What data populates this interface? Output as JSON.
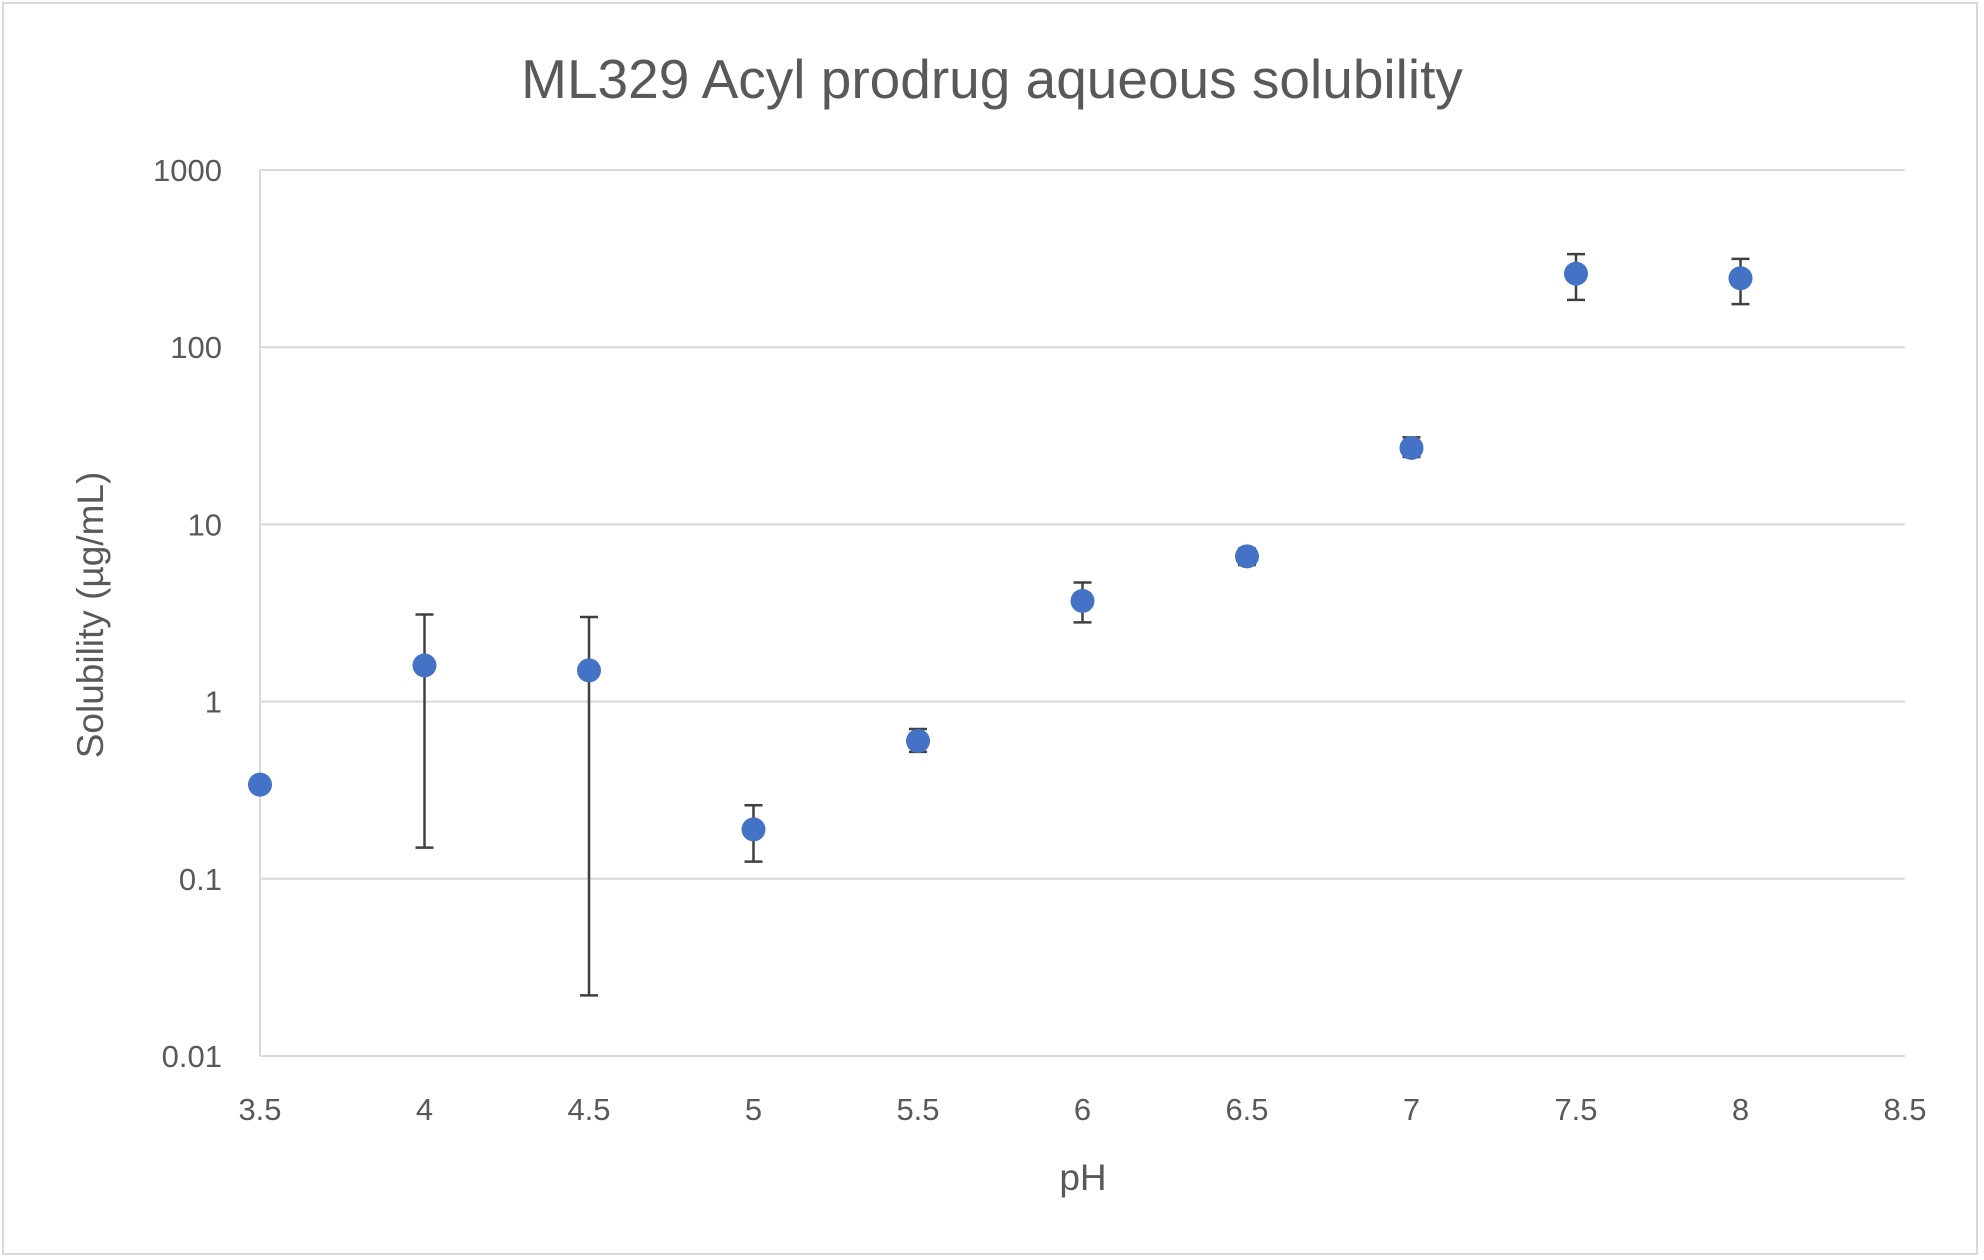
{
  "chart_data": {
    "type": "scatter",
    "title": "ML329 Acyl prodrug aqueous solubility",
    "xlabel": "pH",
    "ylabel": "Solubility (µg/mL)",
    "x_scale": "linear",
    "y_scale": "log",
    "xlim": [
      3.5,
      8.5
    ],
    "ylim": [
      0.01,
      1000
    ],
    "x_ticks": [
      3.5,
      4,
      4.5,
      5,
      5.5,
      6,
      6.5,
      7,
      7.5,
      8,
      8.5
    ],
    "x_tick_labels": [
      "3.5",
      "4",
      "4.5",
      "5",
      "5.5",
      "6",
      "6.5",
      "7",
      "7.5",
      "8",
      "8.5"
    ],
    "y_ticks": [
      0.01,
      0.1,
      1,
      10,
      100,
      1000
    ],
    "y_tick_labels": [
      "0.01",
      "0.1",
      "1",
      "10",
      "100",
      "1000"
    ],
    "grid": "horizontal",
    "legend": "none",
    "colors": {
      "marker": "#4472C4",
      "error_bar": "#404040",
      "gridline": "#d9d9d9",
      "text": "#595959"
    },
    "series": [
      {
        "points": [
          {
            "x": 3.5,
            "y": 0.34,
            "y_low": 0.32,
            "y_high": 0.36
          },
          {
            "x": 4.0,
            "y": 1.6,
            "y_low": 0.15,
            "y_high": 3.1
          },
          {
            "x": 4.5,
            "y": 1.5,
            "y_low": 0.022,
            "y_high": 3.0
          },
          {
            "x": 5.0,
            "y": 0.19,
            "y_low": 0.125,
            "y_high": 0.26
          },
          {
            "x": 5.5,
            "y": 0.6,
            "y_low": 0.52,
            "y_high": 0.7
          },
          {
            "x": 6.0,
            "y": 3.7,
            "y_low": 2.8,
            "y_high": 4.7
          },
          {
            "x": 6.5,
            "y": 6.6,
            "y_low": 5.9,
            "y_high": 7.3
          },
          {
            "x": 7.0,
            "y": 27,
            "y_low": 24,
            "y_high": 31
          },
          {
            "x": 7.5,
            "y": 260,
            "y_low": 185,
            "y_high": 335
          },
          {
            "x": 8.0,
            "y": 245,
            "y_low": 175,
            "y_high": 315
          }
        ]
      }
    ]
  }
}
